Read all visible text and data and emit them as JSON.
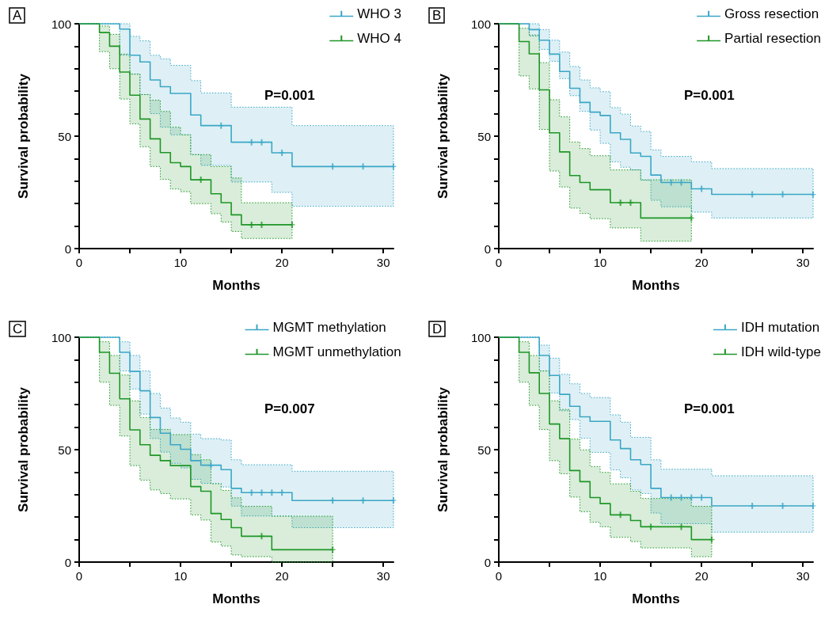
{
  "chart_data": [
    {
      "type": "step",
      "title": "A",
      "xlabel": "Months",
      "ylabel": "Survival probability",
      "xlim": [
        0,
        31
      ],
      "ylim": [
        0,
        100
      ],
      "xticks": [
        0,
        {
          "value": 5,
          "label": null
        },
        10,
        {
          "value": 15,
          "label": null
        },
        20,
        {
          "value": 25,
          "label": null
        },
        30
      ],
      "yticks": [
        0,
        {
          "value": 10,
          "label": null
        },
        {
          "value": 20,
          "label": null
        },
        {
          "value": 30,
          "label": null
        },
        {
          "value": 40,
          "label": null
        },
        50,
        {
          "value": 60,
          "label": null
        },
        {
          "value": 70,
          "label": null
        },
        {
          "value": 80,
          "label": null
        },
        {
          "value": 90,
          "label": null
        },
        100
      ],
      "legend": "top right",
      "annotations": [
        "P=0.001"
      ],
      "series": [
        {
          "name": "WHO 3",
          "color": "#3aa6c6",
          "x": [
            0,
            4,
            5,
            6,
            7,
            8,
            9,
            11,
            12,
            15,
            19,
            21,
            31
          ],
          "values": [
            100,
            97.6,
            86,
            83,
            75,
            72,
            69,
            59.4,
            54.7,
            47.3,
            42.6,
            36.5,
            36.5
          ],
          "lower": [
            100,
            86,
            77.6,
            68.5,
            60,
            54,
            50.6,
            41.8,
            37,
            29.6,
            25,
            18.8,
            18.8
          ],
          "upper": [
            100,
            100,
            94.4,
            92.4,
            86,
            84.4,
            81.5,
            74.7,
            69.2,
            62.9,
            62.9,
            54.7,
            54.7
          ]
        },
        {
          "name": "WHO 4",
          "color": "#1e9626",
          "x": [
            0,
            2,
            3,
            4,
            5,
            6,
            7,
            8,
            9,
            10,
            11,
            13,
            14,
            15,
            16,
            21
          ],
          "values": [
            100,
            96.1,
            90,
            78.5,
            68.2,
            57.6,
            48.8,
            42.7,
            38.2,
            36.5,
            30.6,
            24.4,
            20.4,
            15,
            10.6,
            10.6
          ],
          "lower": [
            100,
            87.6,
            80,
            66.5,
            55.5,
            45.3,
            36.5,
            30.8,
            26.5,
            25.3,
            20,
            15.5,
            11.8,
            7.6,
            4.5,
            4.5
          ],
          "upper": [
            100,
            99,
            95.3,
            86.5,
            77.6,
            68.5,
            66,
            61,
            54,
            50.6,
            41.8,
            36.5,
            36.5,
            31.4,
            20.4,
            20.4
          ]
        },
        {
          "type": "scatter",
          "color": "#3aa6c6",
          "x": [
            14,
            17,
            18,
            20,
            25,
            28,
            31
          ],
          "values": [
            54.7,
            47.3,
            47.3,
            42.6,
            36.5,
            36.5,
            36.5
          ]
        },
        {
          "type": "scatter",
          "color": "#1e9626",
          "x": [
            12,
            17,
            18,
            21
          ],
          "values": [
            30.6,
            10.6,
            10.6,
            10.6
          ]
        }
      ]
    },
    {
      "type": "step",
      "title": "B",
      "xlabel": "Months",
      "ylabel": "Survival probability",
      "xlim": [
        0,
        31
      ],
      "ylim": [
        0,
        100
      ],
      "xticks": [
        0,
        {
          "value": 5,
          "label": null
        },
        10,
        {
          "value": 15,
          "label": null
        },
        20,
        {
          "value": 25,
          "label": null
        },
        30
      ],
      "yticks": [
        0,
        {
          "value": 10,
          "label": null
        },
        {
          "value": 20,
          "label": null
        },
        {
          "value": 30,
          "label": null
        },
        {
          "value": 40,
          "label": null
        },
        50,
        {
          "value": 60,
          "label": null
        },
        {
          "value": 70,
          "label": null
        },
        {
          "value": 80,
          "label": null
        },
        {
          "value": 90,
          "label": null
        },
        100
      ],
      "legend": "top right",
      "annotations": [
        "P=0.001"
      ],
      "series": [
        {
          "name": "Gross resection",
          "color": "#3aa6c6",
          "x": [
            0,
            3,
            4,
            5,
            6,
            7,
            8,
            9,
            10,
            11,
            12,
            13,
            14,
            15,
            16,
            19,
            21,
            31
          ],
          "values": [
            100,
            97.4,
            92.7,
            86.5,
            78.8,
            71.3,
            65,
            60.7,
            59.2,
            51.5,
            48.6,
            42.5,
            41,
            32.7,
            29.4,
            26.6,
            24.1,
            24.1
          ],
          "lower": [
            100,
            94.5,
            88.6,
            83.3,
            75.6,
            68,
            61,
            52.7,
            46.8,
            38.6,
            36.2,
            35,
            30.4,
            21.5,
            18.6,
            16.2,
            13.6,
            13.6
          ],
          "upper": [
            100,
            100,
            97.4,
            92.7,
            87.4,
            81,
            75,
            71.5,
            69.8,
            62.7,
            59.8,
            54.5,
            52.1,
            43.9,
            41,
            38.6,
            35.6,
            35.6
          ]
        },
        {
          "name": "Partial resection",
          "color": "#1e9626",
          "x": [
            0,
            2,
            3,
            4,
            5,
            6,
            7,
            8,
            9,
            11,
            14,
            19
          ],
          "values": [
            100,
            92.1,
            86.6,
            70.6,
            51.5,
            43,
            32.5,
            29.4,
            26.2,
            20.4,
            13.6,
            13.6
          ],
          "lower": [
            100,
            76.8,
            71,
            53,
            34.5,
            27.4,
            18,
            15.6,
            13.3,
            9.2,
            3.3,
            3.3
          ],
          "upper": [
            100,
            98,
            95,
            82.7,
            66.2,
            58.6,
            47.4,
            44.5,
            41.3,
            35,
            30.6,
            30.6
          ]
        },
        {
          "type": "scatter",
          "color": "#3aa6c6",
          "x": [
            17,
            18,
            20,
            25,
            28,
            31
          ],
          "values": [
            29.4,
            29.4,
            26.6,
            24.1,
            24.1,
            24.1
          ]
        },
        {
          "type": "scatter",
          "color": "#1e9626",
          "x": [
            12,
            13,
            19
          ],
          "values": [
            20.4,
            20.4,
            13.6
          ]
        }
      ]
    },
    {
      "type": "step",
      "title": "C",
      "xlabel": "Months",
      "ylabel": "Survival probability",
      "xlim": [
        0,
        31
      ],
      "ylim": [
        0,
        100
      ],
      "xticks": [
        0,
        {
          "value": 5,
          "label": null
        },
        10,
        {
          "value": 15,
          "label": null
        },
        20,
        {
          "value": 25,
          "label": null
        },
        30
      ],
      "yticks": [
        0,
        {
          "value": 10,
          "label": null
        },
        {
          "value": 20,
          "label": null
        },
        {
          "value": 30,
          "label": null
        },
        {
          "value": 40,
          "label": null
        },
        50,
        {
          "value": 60,
          "label": null
        },
        {
          "value": 70,
          "label": null
        },
        {
          "value": 80,
          "label": null
        },
        {
          "value": 90,
          "label": null
        },
        100
      ],
      "legend": "top right",
      "annotations": [
        "P=0.007"
      ],
      "series": [
        {
          "name": "MGMT methylation",
          "color": "#3aa6c6",
          "x": [
            0,
            4,
            5,
            6,
            7,
            8,
            9,
            10,
            11,
            12,
            14,
            15,
            16,
            21,
            31
          ],
          "values": [
            100,
            93.3,
            84.8,
            76.2,
            64.3,
            57.3,
            52.2,
            50.2,
            45.1,
            43.1,
            41.1,
            32.8,
            30.9,
            27.4,
            27.4
          ],
          "lower": [
            100,
            85,
            77,
            65.8,
            55,
            48.9,
            43.9,
            41.9,
            36.8,
            35,
            33.4,
            24.9,
            20.5,
            15.3,
            15.3
          ],
          "upper": [
            100,
            98,
            91.9,
            85,
            75,
            68.5,
            64.1,
            62.2,
            56.9,
            54.9,
            54.3,
            45.5,
            43.3,
            40.4,
            40.4
          ]
        },
        {
          "name": "MGMT unmethylation",
          "color": "#1e9626",
          "x": [
            0,
            2,
            3,
            4,
            5,
            6,
            7,
            8,
            9,
            11,
            12,
            13,
            14,
            15,
            16,
            19,
            25
          ],
          "values": [
            100,
            93.3,
            84,
            72.6,
            58.8,
            52.2,
            47.5,
            45.1,
            42.9,
            33.6,
            31.5,
            21.6,
            18.9,
            15.3,
            11.5,
            5.5,
            5.5
          ],
          "lower": [
            100,
            80,
            69.7,
            56.1,
            42.9,
            36.4,
            32.1,
            30.5,
            28.1,
            21,
            18.7,
            8.9,
            7.1,
            3.2,
            2.4,
            0,
            0
          ],
          "upper": [
            100,
            98,
            91.9,
            83.2,
            71.7,
            64.3,
            59,
            59,
            56.7,
            47.8,
            45.5,
            34.8,
            31.9,
            28.6,
            24.8,
            20.4,
            20.4
          ]
        },
        {
          "type": "scatter",
          "color": "#3aa6c6",
          "x": [
            13,
            17,
            18,
            19,
            20,
            25,
            28,
            31
          ],
          "values": [
            43.1,
            30.9,
            30.9,
            30.9,
            30.9,
            27.4,
            27.4,
            27.4
          ]
        },
        {
          "type": "scatter",
          "color": "#1e9626",
          "x": [
            18,
            25
          ],
          "values": [
            11.5,
            5.5
          ]
        }
      ]
    },
    {
      "type": "step",
      "title": "D",
      "xlabel": "Months",
      "ylabel": "Survival probability",
      "xlim": [
        0,
        31
      ],
      "ylim": [
        0,
        100
      ],
      "xticks": [
        0,
        {
          "value": 5,
          "label": null
        },
        10,
        {
          "value": 15,
          "label": null
        },
        20,
        {
          "value": 25,
          "label": null
        },
        30
      ],
      "yticks": [
        0,
        {
          "value": 10,
          "label": null
        },
        {
          "value": 20,
          "label": null
        },
        {
          "value": 30,
          "label": null
        },
        {
          "value": 40,
          "label": null
        },
        50,
        {
          "value": 60,
          "label": null
        },
        {
          "value": 70,
          "label": null
        },
        {
          "value": 80,
          "label": null
        },
        {
          "value": 90,
          "label": null
        },
        100
      ],
      "legend": "top right",
      "annotations": [
        "P=0.001"
      ],
      "series": [
        {
          "name": "IDH mutation",
          "color": "#3aa6c6",
          "x": [
            0,
            4,
            5,
            6,
            7,
            8,
            9,
            11,
            12,
            13,
            14,
            15,
            16,
            21,
            31
          ],
          "values": [
            100,
            91.9,
            83,
            74.6,
            69.3,
            64.6,
            62.6,
            54.3,
            50.5,
            45.5,
            43.4,
            32.8,
            28.7,
            25,
            25
          ],
          "lower": [
            100,
            85,
            75.2,
            67.3,
            63.4,
            55.1,
            48.8,
            41,
            37.5,
            32.1,
            30.5,
            21.8,
            17.1,
            13.3,
            13.3
          ],
          "upper": [
            100,
            96.5,
            90.7,
            83.5,
            79.3,
            75,
            73.2,
            65.5,
            62.2,
            55.5,
            55.5,
            45.5,
            41.3,
            38.4,
            38.4
          ]
        },
        {
          "name": "IDH wild-type",
          "color": "#1e9626",
          "x": [
            0,
            2,
            3,
            4,
            5,
            6,
            7,
            8,
            9,
            10,
            11,
            13,
            14,
            19,
            21
          ],
          "values": [
            100,
            93.3,
            84.2,
            75,
            61.4,
            54.9,
            40.7,
            35.8,
            28.7,
            26,
            21,
            18.5,
            15.7,
            10,
            10
          ],
          "lower": [
            100,
            80,
            69.7,
            59,
            45.1,
            39.3,
            28.9,
            22.4,
            17.7,
            15.7,
            11,
            9.1,
            6.3,
            2.4,
            2.4
          ],
          "upper": [
            100,
            98,
            91.9,
            85,
            71.7,
            67.9,
            54.7,
            49.9,
            42.5,
            39.9,
            34.8,
            31.5,
            28.3,
            24.8,
            24.8
          ]
        },
        {
          "type": "scatter",
          "color": "#3aa6c6",
          "x": [
            17,
            18,
            19,
            20,
            25,
            28,
            31
          ],
          "values": [
            28.7,
            28.7,
            28.7,
            28.7,
            25,
            25,
            25
          ]
        },
        {
          "type": "scatter",
          "color": "#1e9626",
          "x": [
            12,
            15,
            18,
            21
          ],
          "values": [
            21,
            15.7,
            15.7,
            10
          ]
        }
      ]
    }
  ]
}
